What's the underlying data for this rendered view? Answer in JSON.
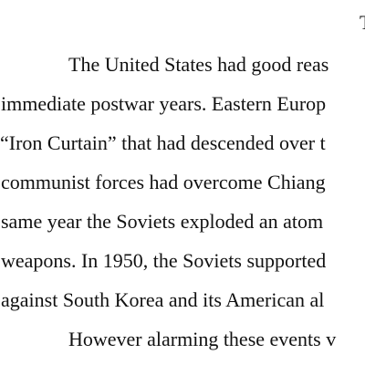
{
  "document": {
    "heading_fragment": "T",
    "lines": [
      "The United States had good reas",
      "immediate postwar years. Eastern Europ",
      "“Iron Curtain” that had descended over t",
      "communist forces had overcome Chiang",
      "same year the Soviets exploded an atom",
      "weapons. In 1950, the Soviets supported",
      "against South Korea and its American al",
      "However alarming these events v"
    ]
  }
}
